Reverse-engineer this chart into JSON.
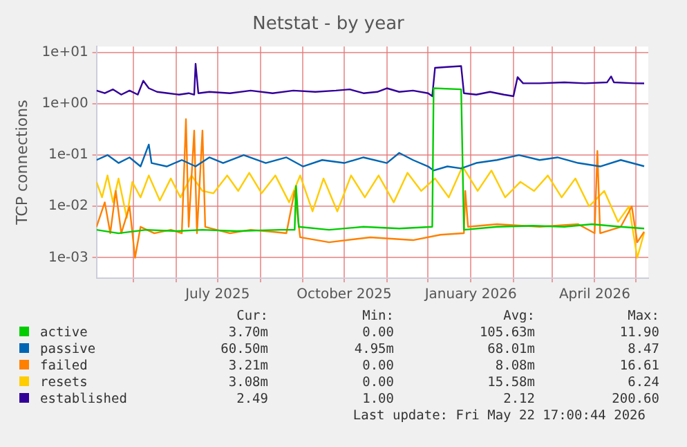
{
  "chart_data": {
    "type": "line",
    "title": "Netstat - by year",
    "ylabel": "TCP connections",
    "log": true,
    "grid": true,
    "legend": "bottom",
    "marker": "none",
    "line_style": "solid",
    "xlim": [
      "2025-04-04",
      "2026-05-10"
    ],
    "xticks": [
      {
        "value": "2025-05-01",
        "label": null
      },
      {
        "value": "2025-06-01",
        "label": null
      },
      {
        "value": "2025-07-01",
        "label": "July 2025"
      },
      {
        "value": "2025-08-01",
        "label": null
      },
      {
        "value": "2025-09-01",
        "label": null
      },
      {
        "value": "2025-10-01",
        "label": "October 2025"
      },
      {
        "value": "2025-11-01",
        "label": null
      },
      {
        "value": "2025-12-01",
        "label": null
      },
      {
        "value": "2026-01-01",
        "label": "January 2026"
      },
      {
        "value": "2026-02-01",
        "label": null
      },
      {
        "value": "2026-03-01",
        "label": null
      },
      {
        "value": "2026-04-01",
        "label": "April 2026"
      },
      {
        "value": "2026-05-01",
        "label": null
      }
    ],
    "ylim": [
      0.0004,
      13
    ],
    "yticks": [
      {
        "value": 0.001,
        "label": "1e-03"
      },
      {
        "value": 0.01,
        "label": "1e-02"
      },
      {
        "value": 0.1,
        "label": "1e-01"
      },
      {
        "value": 1,
        "label": "1e+00"
      },
      {
        "value": 10,
        "label": "1e+01"
      }
    ],
    "series": [
      {
        "name": "active",
        "color": "#00cc00",
        "x": [
          "2025-04-04",
          "2025-04-20",
          "2025-05-10",
          "2025-06-01",
          "2025-06-20",
          "2025-07-15",
          "2025-08-15",
          "2025-08-26",
          "2025-08-27",
          "2025-08-29",
          "2025-09-20",
          "2025-10-15",
          "2025-11-10",
          "2025-12-04",
          "2025-12-05",
          "2025-12-25",
          "2025-12-27",
          "2026-01-20",
          "2026-02-15",
          "2026-03-10",
          "2026-03-30",
          "2026-04-20",
          "2026-05-07"
        ],
        "values": [
          0.0035,
          0.003,
          0.0035,
          0.0033,
          0.0035,
          0.0033,
          0.0035,
          0.0035,
          0.025,
          0.004,
          0.0035,
          0.004,
          0.0037,
          0.004,
          2.0,
          1.9,
          0.0035,
          0.004,
          0.0042,
          0.004,
          0.0045,
          0.004,
          0.0037
        ]
      },
      {
        "name": "passive",
        "color": "#0066b3",
        "x": [
          "2025-04-04",
          "2025-04-12",
          "2025-04-20",
          "2025-04-28",
          "2025-05-06",
          "2025-05-12",
          "2025-05-14",
          "2025-05-25",
          "2025-06-05",
          "2025-06-15",
          "2025-06-25",
          "2025-07-05",
          "2025-07-20",
          "2025-08-05",
          "2025-08-20",
          "2025-09-01",
          "2025-09-15",
          "2025-10-01",
          "2025-10-15",
          "2025-11-01",
          "2025-11-10",
          "2025-11-20",
          "2025-12-01",
          "2025-12-05",
          "2025-12-15",
          "2025-12-25",
          "2026-01-05",
          "2026-01-20",
          "2026-02-05",
          "2026-02-20",
          "2026-03-05",
          "2026-03-20",
          "2026-04-05",
          "2026-04-20",
          "2026-05-07"
        ],
        "values": [
          0.08,
          0.1,
          0.07,
          0.09,
          0.06,
          0.16,
          0.07,
          0.06,
          0.08,
          0.06,
          0.09,
          0.07,
          0.1,
          0.07,
          0.09,
          0.06,
          0.08,
          0.07,
          0.09,
          0.07,
          0.11,
          0.08,
          0.06,
          0.05,
          0.06,
          0.055,
          0.07,
          0.08,
          0.1,
          0.08,
          0.09,
          0.07,
          0.06,
          0.08,
          0.0605
        ]
      },
      {
        "name": "failed",
        "color": "#ff8000",
        "x": [
          "2025-04-04",
          "2025-04-10",
          "2025-04-14",
          "2025-04-18",
          "2025-04-22",
          "2025-04-28",
          "2025-05-02",
          "2025-05-06",
          "2025-05-16",
          "2025-05-28",
          "2025-06-05",
          "2025-06-08",
          "2025-06-10",
          "2025-06-14",
          "2025-06-16",
          "2025-06-20",
          "2025-06-22",
          "2025-07-10",
          "2025-07-25",
          "2025-08-10",
          "2025-08-20",
          "2025-08-26",
          "2025-08-30",
          "2025-09-20",
          "2025-10-20",
          "2025-11-20",
          "2025-12-10",
          "2025-12-27",
          "2025-12-28",
          "2025-12-30",
          "2026-01-20",
          "2026-02-20",
          "2026-03-20",
          "2026-04-01",
          "2026-04-03",
          "2026-04-05",
          "2026-04-20",
          "2026-04-28",
          "2026-05-02",
          "2026-05-07"
        ],
        "values": [
          0.004,
          0.012,
          0.003,
          0.02,
          0.003,
          0.01,
          0.001,
          0.004,
          0.003,
          0.0035,
          0.003,
          0.5,
          0.004,
          0.3,
          0.003,
          0.3,
          0.004,
          0.003,
          0.0035,
          0.0032,
          0.003,
          0.02,
          0.0025,
          0.002,
          0.0025,
          0.0022,
          0.0028,
          0.003,
          0.02,
          0.004,
          0.0045,
          0.004,
          0.0045,
          0.003,
          0.12,
          0.003,
          0.004,
          0.01,
          0.002,
          0.00321
        ]
      },
      {
        "name": "resets",
        "color": "#ffcc00",
        "x": [
          "2025-04-04",
          "2025-04-08",
          "2025-04-12",
          "2025-04-16",
          "2025-04-20",
          "2025-04-26",
          "2025-04-30",
          "2025-05-06",
          "2025-05-12",
          "2025-05-20",
          "2025-05-28",
          "2025-06-04",
          "2025-06-12",
          "2025-06-20",
          "2025-06-28",
          "2025-07-08",
          "2025-07-16",
          "2025-07-24",
          "2025-08-02",
          "2025-08-12",
          "2025-08-22",
          "2025-08-30",
          "2025-09-08",
          "2025-09-16",
          "2025-09-26",
          "2025-10-06",
          "2025-10-16",
          "2025-10-26",
          "2025-11-06",
          "2025-11-16",
          "2025-11-26",
          "2025-12-06",
          "2025-12-16",
          "2025-12-26",
          "2026-01-06",
          "2026-01-16",
          "2026-01-26",
          "2026-02-06",
          "2026-02-16",
          "2026-02-26",
          "2026-03-08",
          "2026-03-18",
          "2026-03-28",
          "2026-04-08",
          "2026-04-18",
          "2026-04-26",
          "2026-05-02",
          "2026-05-07"
        ],
        "values": [
          0.03,
          0.015,
          0.04,
          0.012,
          0.035,
          0.006,
          0.03,
          0.015,
          0.04,
          0.013,
          0.035,
          0.015,
          0.04,
          0.02,
          0.018,
          0.04,
          0.02,
          0.045,
          0.018,
          0.04,
          0.012,
          0.04,
          0.008,
          0.035,
          0.008,
          0.04,
          0.015,
          0.04,
          0.012,
          0.045,
          0.02,
          0.035,
          0.015,
          0.06,
          0.02,
          0.05,
          0.015,
          0.03,
          0.02,
          0.04,
          0.015,
          0.035,
          0.01,
          0.02,
          0.005,
          0.01,
          0.001,
          0.00308
        ]
      },
      {
        "name": "established",
        "color": "#330099",
        "x": [
          "2025-04-04",
          "2025-04-10",
          "2025-04-16",
          "2025-04-22",
          "2025-04-28",
          "2025-05-04",
          "2025-05-08",
          "2025-05-12",
          "2025-05-18",
          "2025-05-26",
          "2025-06-03",
          "2025-06-10",
          "2025-06-14",
          "2025-06-15",
          "2025-06-17",
          "2025-06-25",
          "2025-07-10",
          "2025-07-25",
          "2025-08-10",
          "2025-08-25",
          "2025-09-10",
          "2025-09-25",
          "2025-10-05",
          "2025-10-15",
          "2025-10-25",
          "2025-11-01",
          "2025-11-10",
          "2025-11-20",
          "2025-12-01",
          "2025-12-04",
          "2025-12-06",
          "2025-12-15",
          "2025-12-25",
          "2025-12-27",
          "2026-01-05",
          "2026-01-15",
          "2026-01-25",
          "2026-02-01",
          "2026-02-04",
          "2026-02-08",
          "2026-02-20",
          "2026-03-10",
          "2026-03-25",
          "2026-04-10",
          "2026-04-13",
          "2026-04-15",
          "2026-04-30",
          "2026-05-07"
        ],
        "values": [
          1.8,
          1.6,
          1.9,
          1.5,
          1.8,
          1.5,
          2.8,
          2.0,
          1.7,
          1.6,
          1.5,
          1.6,
          1.5,
          6.0,
          1.6,
          1.7,
          1.6,
          1.8,
          1.6,
          1.8,
          1.7,
          1.8,
          1.9,
          1.6,
          1.7,
          2.0,
          1.7,
          1.8,
          1.6,
          1.4,
          5.0,
          5.2,
          5.4,
          1.6,
          1.5,
          1.7,
          1.5,
          1.4,
          3.3,
          2.5,
          2.5,
          2.6,
          2.5,
          2.6,
          3.4,
          2.6,
          2.5,
          2.49
        ]
      }
    ],
    "annotations": [
      "Cur:",
      "Min:",
      "Avg:",
      "Max:",
      "3.70m",
      "0.00",
      "105.63m",
      "11.90",
      "60.50m",
      "4.95m",
      "68.01m",
      "8.47",
      "3.21m",
      "0.00",
      "8.08m",
      "16.61",
      "3.08m",
      "0.00",
      "15.58m",
      "6.24",
      "2.49",
      "1.00",
      "2.12",
      "200.60",
      "Last update: Fri May 22 17:00:44 2026"
    ]
  }
}
